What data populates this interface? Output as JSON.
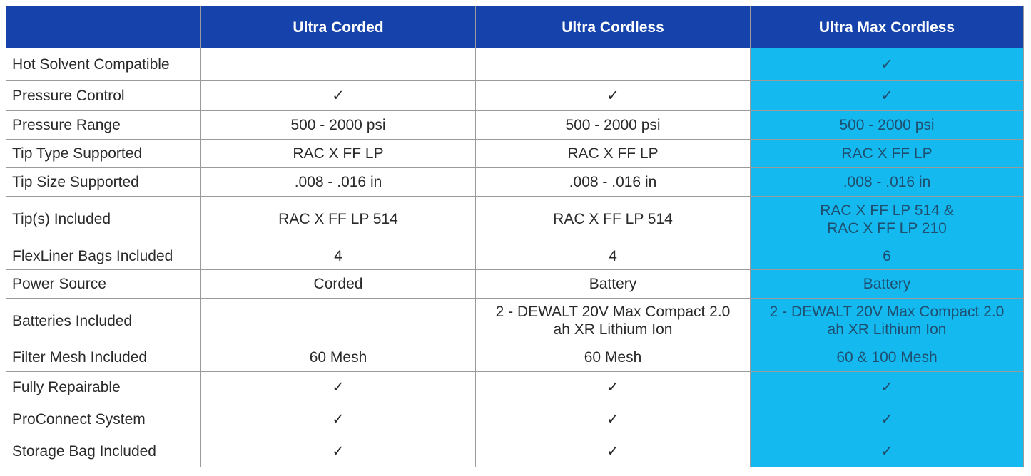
{
  "header": {
    "columns": [
      "Ultra Corded",
      "Ultra Cordless",
      "Ultra Max Cordless"
    ]
  },
  "table": {
    "rows": [
      {
        "label": "Hot Solvent Compatible",
        "cells": [
          null,
          null,
          "✓"
        ]
      },
      {
        "label": "Pressure Control",
        "cells": [
          "✓",
          "✓",
          "✓"
        ]
      },
      {
        "label": "Pressure Range",
        "cells": [
          "500 - 2000 psi",
          "500 - 2000 psi",
          "500 - 2000 psi"
        ]
      },
      {
        "label": "Tip Type Supported",
        "cells": [
          "RAC X FF LP",
          "RAC X FF LP",
          "RAC X FF LP"
        ]
      },
      {
        "label": "Tip Size Supported",
        "cells": [
          ".008 - .016 in",
          ".008 - .016 in",
          ".008 - .016 in"
        ]
      },
      {
        "label": "Tip(s) Included",
        "cells": [
          "RAC X FF LP 514",
          "RAC X FF LP 514",
          [
            "RAC X FF LP 514 &",
            "RAC X FF LP 210"
          ]
        ]
      },
      {
        "label": "FlexLiner Bags Included",
        "cells": [
          "4",
          "4",
          "6"
        ]
      },
      {
        "label": "Power Source",
        "cells": [
          "Corded",
          "Battery",
          "Battery"
        ]
      },
      {
        "label": "Batteries Included",
        "cells": [
          null,
          [
            "2 - DEWALT 20V Max Compact 2.0",
            "ah XR Lithium Ion"
          ],
          [
            "2 - DEWALT 20V Max Compact 2.0",
            "ah XR Lithium Ion"
          ]
        ]
      },
      {
        "label": "Filter Mesh Included",
        "cells": [
          "60 Mesh",
          "60 Mesh",
          "60 & 100 Mesh"
        ]
      },
      {
        "label": "Fully Repairable",
        "cells": [
          "✓",
          "✓",
          "✓"
        ]
      },
      {
        "label": "ProConnect System",
        "cells": [
          "✓",
          "✓",
          "✓"
        ]
      },
      {
        "label": "Storage Bag Included",
        "cells": [
          "✓",
          "✓",
          "✓"
        ]
      }
    ]
  }
}
